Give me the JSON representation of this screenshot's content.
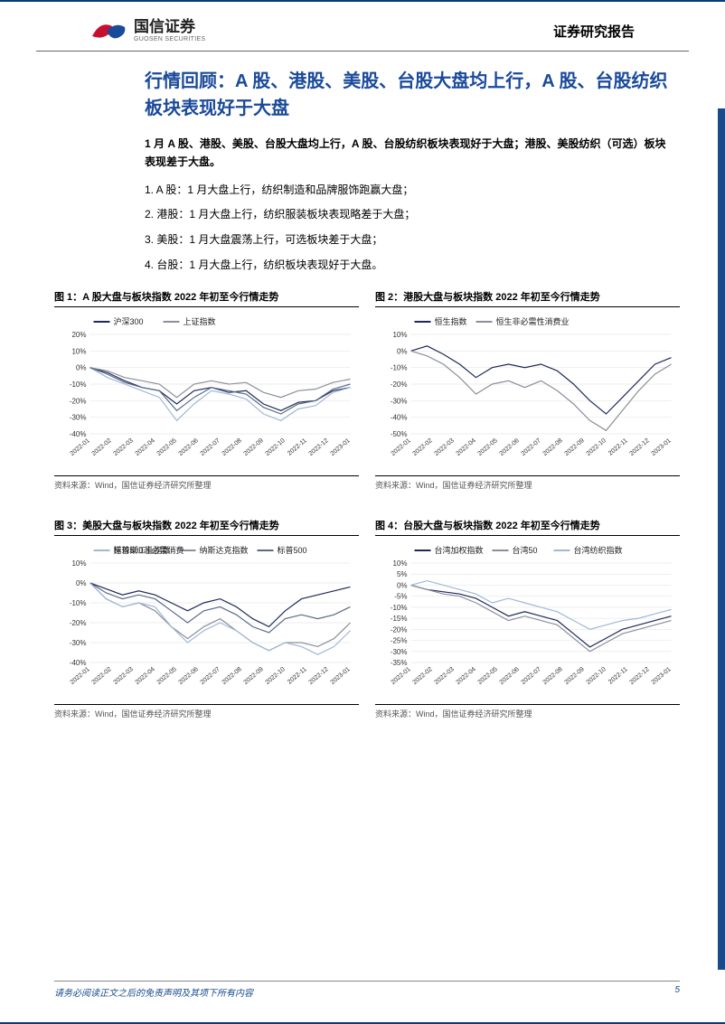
{
  "colors": {
    "brand_blue": "#1a4a9a",
    "line_dark": "#1e2a5a",
    "line_grey": "#8a8f99",
    "line_light": "#9fb8d8",
    "line_mid": "#5a6a88",
    "axis": "#888888",
    "grid": "#e8e8e8",
    "text": "#000000",
    "footer_text": "#164a8a"
  },
  "header": {
    "logo_cn": "国信证券",
    "logo_en": "GUOSEN SECURITIES",
    "report_type": "证券研究报告"
  },
  "section": {
    "title": "行情回顾：A 股、港股、美股、台股大盘均上行，A 股、台股纺织板块表现好于大盘",
    "summary": "1 月 A 股、港股、美股、台股大盘均上行，A 股、台股纺织板块表现好于大盘；港股、美股纺织（可选）板块表现差于大盘。",
    "bullets": [
      "1.  A 股：1 月大盘上行，纺织制造和品牌服饰跑赢大盘；",
      "2.  港股：1 月大盘上行，纺织服装板块表现略差于大盘；",
      "3.  美股：1 月大盘震荡上行，可选板块差于大盘；",
      "4.  台股：1 月大盘上行，纺织板块表现好于大盘。"
    ]
  },
  "chart_common": {
    "x_labels": [
      "2022-01",
      "2022-02",
      "2022-03",
      "2022-04",
      "2022-05",
      "2022-06",
      "2022-07",
      "2022-08",
      "2022-09",
      "2022-10",
      "2022-11",
      "2022-12",
      "2023-01"
    ],
    "source": "资料来源：Wind，国信证券经济研究所整理",
    "axis_fontsize": 8,
    "legend_fontsize": 9,
    "line_width": 1.2,
    "grid_on": true
  },
  "charts": [
    {
      "id": "chart1",
      "title": "图 1：A 股大盘与板块指数 2022 年初至今行情走势",
      "type": "line",
      "ylim": [
        -40,
        20
      ],
      "yticks": [
        -40,
        -30,
        -20,
        -10,
        0,
        10,
        20
      ],
      "ytick_labels": [
        "-40%",
        "-30%",
        "-20%",
        "-10%",
        "0%",
        "10%",
        "20%"
      ],
      "legend_pos": "top",
      "series": [
        {
          "name": "沪深300",
          "color": "#1e2a5a",
          "values": [
            0,
            -3,
            -8,
            -12,
            -14,
            -22,
            -14,
            -12,
            -15,
            -14,
            -22,
            -26,
            -21,
            -20,
            -14,
            -12
          ]
        },
        {
          "name": "上证指数",
          "color": "#8a8f99",
          "values": [
            0,
            -2,
            -6,
            -8,
            -10,
            -18,
            -10,
            -8,
            -10,
            -9,
            -15,
            -18,
            -14,
            -13,
            -9,
            -7
          ]
        },
        {
          "name": "",
          "color": "#9fb8d8",
          "values": [
            0,
            -6,
            -10,
            -14,
            -18,
            -32,
            -22,
            -14,
            -16,
            -19,
            -28,
            -32,
            -25,
            -23,
            -15,
            -12
          ]
        },
        {
          "name": "",
          "color": "#5a6a88",
          "values": [
            0,
            -4,
            -9,
            -12,
            -14,
            -26,
            -18,
            -12,
            -14,
            -16,
            -24,
            -28,
            -22,
            -20,
            -13,
            -10
          ]
        }
      ]
    },
    {
      "id": "chart2",
      "title": "图 2：港股大盘与板块指数 2022 年初至今行情走势",
      "type": "line",
      "ylim": [
        -50,
        10
      ],
      "yticks": [
        -50,
        -40,
        -30,
        -20,
        -10,
        0,
        10
      ],
      "ytick_labels": [
        "-50%",
        "-40%",
        "-30%",
        "-20%",
        "-10%",
        "0%",
        "10%"
      ],
      "legend_pos": "top",
      "series": [
        {
          "name": "恒生指数",
          "color": "#1e2a5a",
          "values": [
            0,
            3,
            -2,
            -8,
            -16,
            -10,
            -8,
            -10,
            -8,
            -12,
            -20,
            -30,
            -38,
            -28,
            -18,
            -8,
            -4
          ]
        },
        {
          "name": "恒生非必需性消费业",
          "color": "#8a8f99",
          "values": [
            0,
            -3,
            -8,
            -16,
            -26,
            -20,
            -18,
            -22,
            -18,
            -24,
            -32,
            -42,
            -48,
            -36,
            -24,
            -14,
            -8
          ]
        }
      ]
    },
    {
      "id": "chart3",
      "title": "图 3：美股大盘与板块指数 2022 年初至今行情走势",
      "type": "line",
      "ylim": [
        -40,
        10
      ],
      "yticks": [
        -40,
        -30,
        -20,
        -10,
        0,
        10
      ],
      "ytick_labels": [
        "-40%",
        "-30%",
        "-20%",
        "-10%",
        "0%",
        "10%"
      ],
      "legend_pos": "top",
      "series": [
        {
          "name": "道琼斯工业指数",
          "color": "#1e2a5a",
          "values": [
            0,
            -3,
            -6,
            -4,
            -6,
            -10,
            -14,
            -10,
            -8,
            -12,
            -18,
            -22,
            -14,
            -8,
            -6,
            -4,
            -2
          ]
        },
        {
          "name": "纳斯达克指数",
          "color": "#8a8f99",
          "values": [
            0,
            -8,
            -12,
            -10,
            -14,
            -22,
            -28,
            -22,
            -18,
            -24,
            -30,
            -34,
            -30,
            -30,
            -32,
            -28,
            -20
          ]
        },
        {
          "name": "标普500",
          "color": "#5a6a88",
          "values": [
            0,
            -5,
            -8,
            -6,
            -8,
            -14,
            -20,
            -14,
            -12,
            -16,
            -22,
            -25,
            -18,
            -16,
            -18,
            -16,
            -12
          ]
        },
        {
          "name": "标普500非必需消费",
          "color": "#9fb8d8",
          "values": [
            0,
            -8,
            -12,
            -10,
            -12,
            -22,
            -30,
            -24,
            -20,
            -24,
            -30,
            -34,
            -30,
            -32,
            -36,
            -32,
            -24
          ]
        }
      ]
    },
    {
      "id": "chart4",
      "title": "图 4：台股大盘与板块指数 2022 年初至今行情走势",
      "type": "line",
      "ylim": [
        -35,
        10
      ],
      "yticks": [
        -35,
        -30,
        -25,
        -20,
        -15,
        -10,
        -5,
        0,
        5,
        10
      ],
      "ytick_labels": [
        "-35%",
        "-30%",
        "-25%",
        "-20%",
        "-15%",
        "-10%",
        "-5%",
        "0%",
        "5%",
        "10%"
      ],
      "legend_pos": "top",
      "series": [
        {
          "name": "台湾加权指数",
          "color": "#1e2a5a",
          "values": [
            0,
            -2,
            -3,
            -4,
            -6,
            -10,
            -14,
            -12,
            -14,
            -16,
            -22,
            -28,
            -24,
            -20,
            -18,
            -16,
            -14
          ]
        },
        {
          "name": "台湾50",
          "color": "#8a8f99",
          "values": [
            0,
            -2,
            -4,
            -5,
            -8,
            -12,
            -16,
            -14,
            -16,
            -18,
            -24,
            -30,
            -26,
            -22,
            -20,
            -18,
            -16
          ]
        },
        {
          "name": "台湾纺织指数",
          "color": "#9fb8d8",
          "values": [
            0,
            2,
            0,
            -2,
            -4,
            -8,
            -6,
            -8,
            -10,
            -12,
            -16,
            -20,
            -18,
            -16,
            -15,
            -13,
            -11
          ]
        }
      ]
    }
  ],
  "footer": {
    "disclaimer": "请务必阅读正文之后的免责声明及其项下所有内容",
    "page": "5"
  }
}
